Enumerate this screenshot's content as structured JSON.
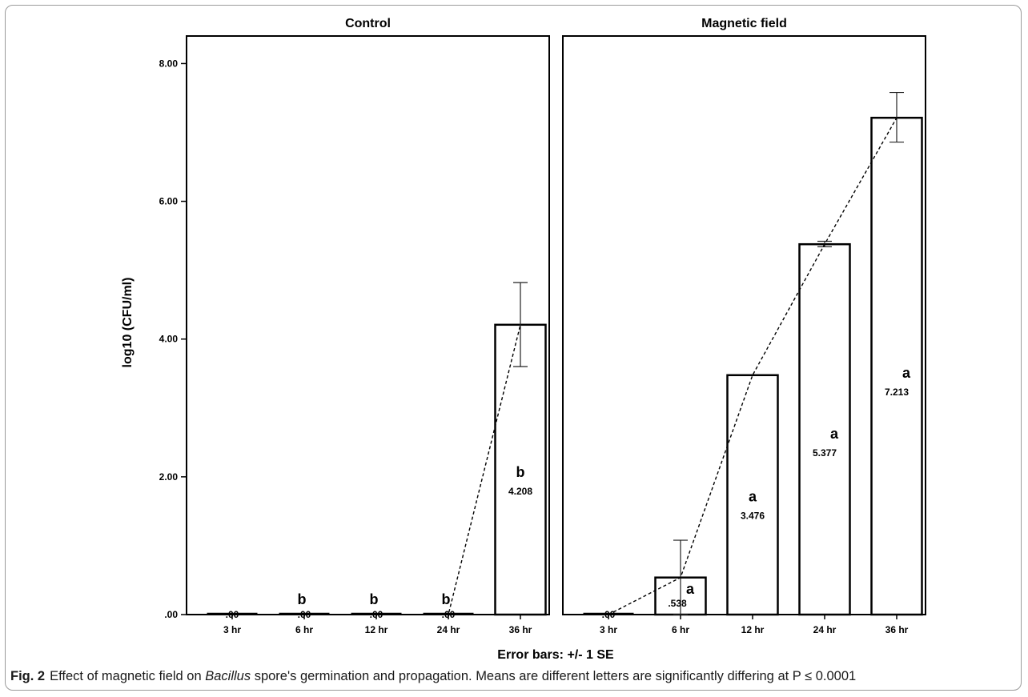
{
  "chart_data": {
    "type": "bar",
    "ylabel": "log10 (CFU/ml)",
    "ylim": [
      0,
      8.4
    ],
    "yticks": [
      0,
      2,
      4,
      6,
      8
    ],
    "ytick_labels": [
      ".00",
      "2.00",
      "4.00",
      "6.00",
      "8.00"
    ],
    "categories": [
      "3 hr",
      "6 hr",
      "12 hr",
      "24 hr",
      "36 hr"
    ],
    "footer": "Error bars: +/- 1 SE",
    "panels": [
      {
        "title": "Control",
        "values": [
          0,
          0,
          0,
          0,
          4.208
        ],
        "value_labels": [
          ".00",
          ".00",
          ".00",
          ".00",
          "4.208"
        ],
        "letters": [
          "",
          "b",
          "b",
          "b",
          "b"
        ],
        "error_bars": [
          null,
          null,
          null,
          null,
          [
            3.6,
            4.82
          ]
        ]
      },
      {
        "title": "Magnetic field",
        "values": [
          0,
          0.538,
          3.476,
          5.377,
          7.213
        ],
        "value_labels": [
          ".00",
          ".538",
          "3.476",
          "5.377",
          "7.213"
        ],
        "letters": [
          "",
          "a",
          "a",
          "a",
          "a"
        ],
        "error_bars": [
          null,
          [
            0,
            1.08
          ],
          null,
          [
            5.34,
            5.42
          ],
          [
            6.86,
            7.58
          ]
        ]
      }
    ],
    "trend_line": "dashed",
    "grid": false,
    "colors": {
      "bar_fill": "#ffffff",
      "bar_stroke": "#000000",
      "text": "#000000"
    }
  },
  "caption": {
    "label": "Fig. 2",
    "text_before": "Effect of magnetic field on ",
    "italic": "Bacillus",
    "text_after": " spore's germination and propagation. Means are different letters are significantly differing at P ≤ 0.0001"
  }
}
